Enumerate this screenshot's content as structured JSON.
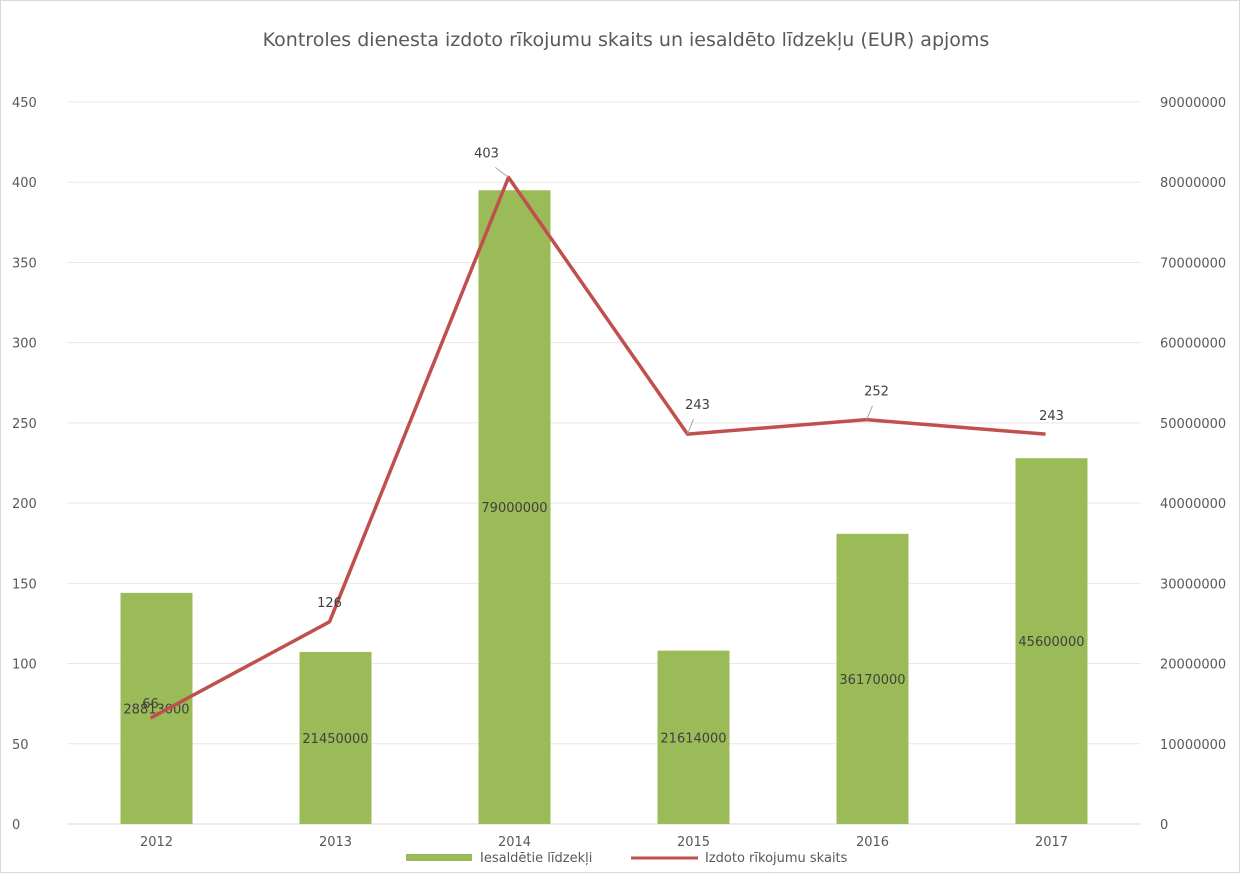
{
  "chart_data": {
    "type": "bar",
    "title": "Kontroles dienesta izdoto rīkojumu skaits un iesaldēto līdzekļu (EUR) apjoms",
    "categories": [
      "2012",
      "2013",
      "2014",
      "2015",
      "2016",
      "2017"
    ],
    "series": [
      {
        "name": "Iesaldētie līdzekļi",
        "type": "bar",
        "axis": "right",
        "color": "#9bbb59",
        "values": [
          28813000,
          21450000,
          79000000,
          21614000,
          36170000,
          45600000
        ],
        "labels": [
          "28813000",
          "21450000",
          "79000000",
          "21614000",
          "36170000",
          "45600000"
        ]
      },
      {
        "name": "Izdoto rīkojumu skaits",
        "type": "line",
        "axis": "left",
        "color": "#c0504d",
        "values": [
          66,
          126,
          403,
          243,
          252,
          243
        ],
        "labels": [
          "66",
          "126",
          "403",
          "243",
          "252",
          "243"
        ]
      }
    ],
    "y_left": {
      "ylim": [
        0,
        450
      ],
      "ticks": [
        "0",
        "50",
        "100",
        "150",
        "200",
        "250",
        "300",
        "350",
        "400",
        "450"
      ]
    },
    "y_right": {
      "ylim": [
        0,
        90000000
      ],
      "ticks": [
        "0",
        "10000000",
        "20000000",
        "30000000",
        "40000000",
        "50000000",
        "60000000",
        "70000000",
        "80000000",
        "90000000"
      ]
    },
    "grid": true,
    "legend_position": "bottom"
  }
}
